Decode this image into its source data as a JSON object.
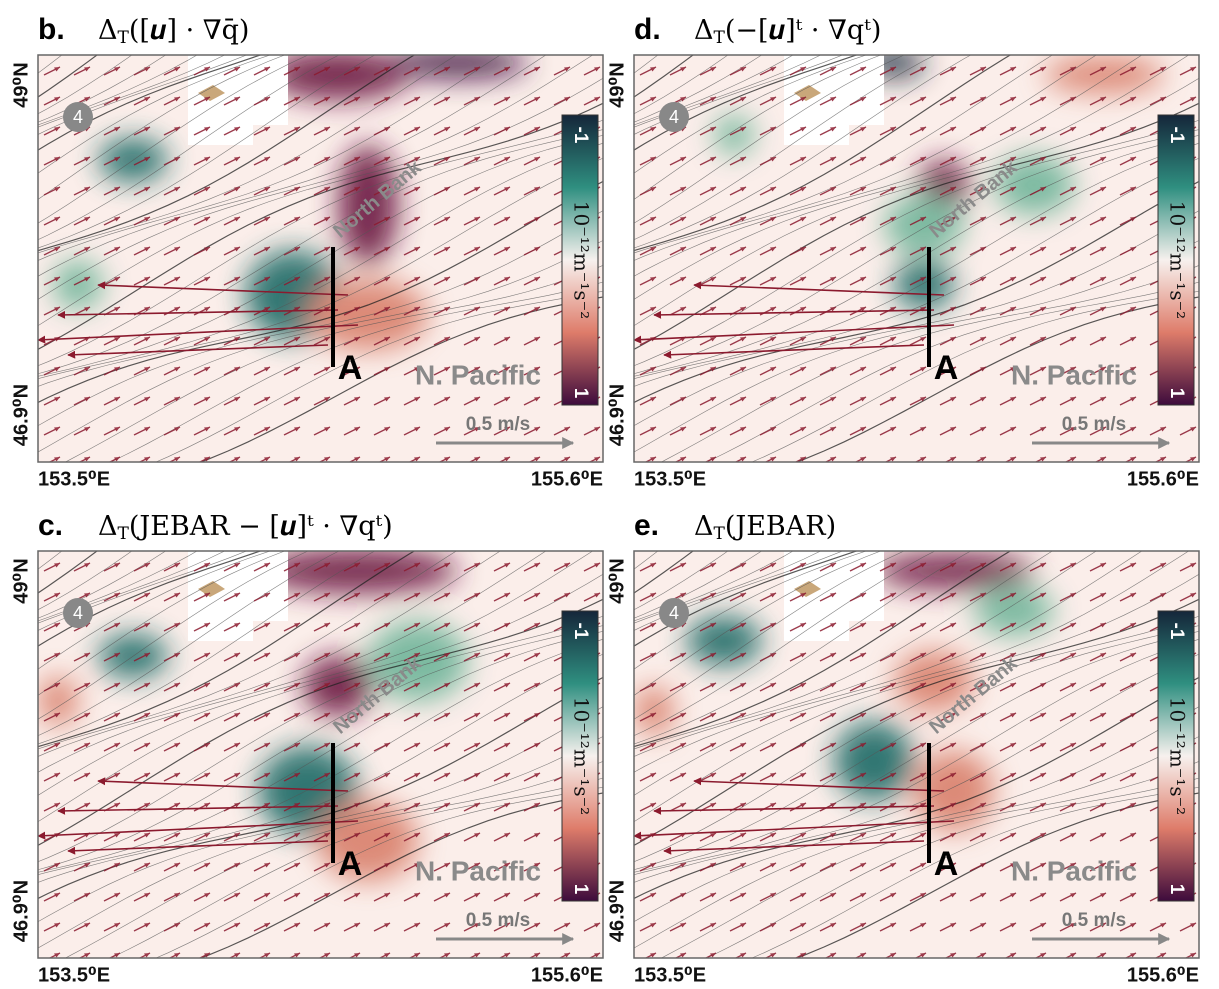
{
  "panels": [
    {
      "label": "b.",
      "title": {
        "delta": "Δ",
        "sub": "T",
        "expr": "([𝒖] · ∇q̄)"
      },
      "lat_top": "49⁰N",
      "lat_bottom": "46.9⁰N",
      "lon_left": "153.5⁰E",
      "lon_right": "155.6⁰E",
      "site": "4",
      "bank": "North Bank",
      "section": "A",
      "ocean": "N. Pacific",
      "scale": "0.5 m/s",
      "colorbar": {
        "top": "-1",
        "bottom": "1",
        "units": "10⁻¹²m⁻¹s⁻²"
      }
    },
    {
      "label": "d.",
      "title": {
        "delta": "Δ",
        "sub": "T",
        "expr": "(−[𝒖]ᵗ · ∇qᵗ)"
      },
      "lat_top": "49⁰N",
      "lat_bottom": "46.9⁰N",
      "lon_left": "153.5⁰E",
      "lon_right": "155.6⁰E",
      "site": "4",
      "bank": "North Bank",
      "section": "A",
      "ocean": "N. Pacific",
      "scale": "0.5 m/s",
      "colorbar": {
        "top": "-1",
        "bottom": "1",
        "units": "10⁻¹²m⁻¹s⁻²"
      }
    },
    {
      "label": "c.",
      "title": {
        "delta": "Δ",
        "sub": "T",
        "expr": "(JEBAR − [𝒖]ᵗ · ∇qᵗ)"
      },
      "lat_top": "49⁰N",
      "lat_bottom": "46.9⁰N",
      "lon_left": "153.5⁰E",
      "lon_right": "155.6⁰E",
      "site": "4",
      "bank": "North Bank",
      "section": "A",
      "ocean": "N. Pacific",
      "scale": "0.5 m/s",
      "colorbar": {
        "top": "-1",
        "bottom": "1",
        "units": "10⁻¹²m⁻¹s⁻²"
      }
    },
    {
      "label": "e.",
      "title": {
        "delta": "Δ",
        "sub": "T",
        "expr": "(JEBAR)"
      },
      "lat_top": "49⁰N",
      "lat_bottom": "46.9⁰N",
      "lon_left": "153.5⁰E",
      "lon_right": "155.6⁰E",
      "site": "4",
      "bank": "North Bank",
      "section": "A",
      "ocean": "N. Pacific",
      "scale": "0.5 m/s",
      "colorbar": {
        "top": "-1",
        "bottom": "1",
        "units": "10⁻¹²m⁻¹s⁻²"
      }
    }
  ]
}
